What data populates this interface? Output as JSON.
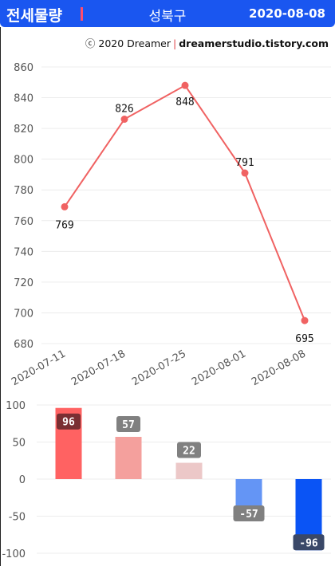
{
  "header": {
    "title": "전세물량",
    "region": "성북구",
    "date": "2020-08-08",
    "accent": "#1a56f0",
    "bar_color": "#ff4d6d"
  },
  "credit": {
    "copyright": "ⓒ 2020 Dreamer",
    "site": "dreamerstudio.tistory.com"
  },
  "chart_data": [
    {
      "type": "line",
      "x": [
        "2020-07-11",
        "2020-07-18",
        "2020-07-25",
        "2020-08-01",
        "2020-08-08"
      ],
      "values": [
        769,
        826,
        848,
        791,
        695
      ],
      "ylim": [
        680,
        860
      ],
      "yticks": [
        680,
        700,
        720,
        740,
        760,
        780,
        800,
        820,
        840,
        860
      ],
      "grid": true,
      "color": "#f06262"
    },
    {
      "type": "bar",
      "categories": [
        "2020-07-11",
        "2020-07-18",
        "2020-07-25",
        "2020-08-01",
        "2020-08-08"
      ],
      "values": [
        96,
        57,
        22,
        -57,
        -96
      ],
      "ylim": [
        -100,
        100
      ],
      "yticks": [
        100,
        50,
        0,
        -50,
        -100
      ],
      "grid": true,
      "colors": [
        "#ff6262",
        "#f4a09d",
        "#ecc8c8",
        "#6495f5",
        "#0a54f5"
      ]
    }
  ]
}
